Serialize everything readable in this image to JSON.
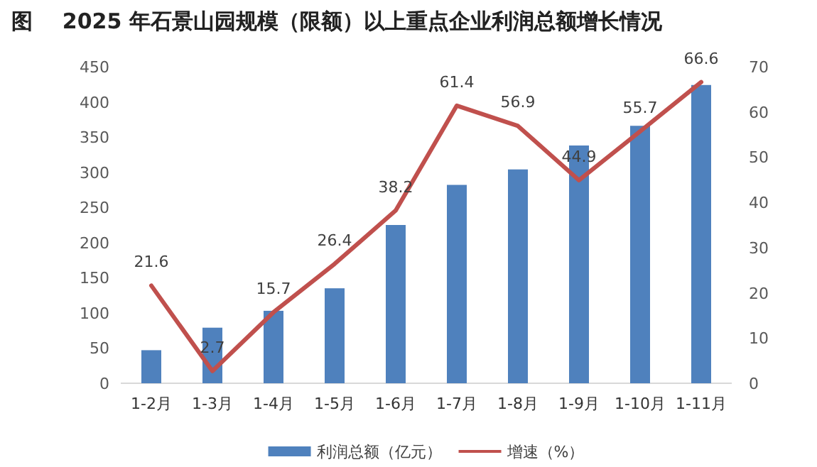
{
  "chart_data": {
    "type": "bar",
    "title": "图    2025 年石景山园规模（限额）以上重点企业利润总额增长情况",
    "categories": [
      "1-2月",
      "1-3月",
      "1-4月",
      "1-5月",
      "1-6月",
      "1-7月",
      "1-8月",
      "1-9月",
      "1-10月",
      "1-11月"
    ],
    "series": [
      {
        "name": "利润总额（亿元）",
        "color": "#4f81bd",
        "values": [
          47,
          79,
          103,
          135,
          225,
          282,
          304,
          338,
          366,
          424
        ]
      },
      {
        "name": "增速（%）",
        "type": "line",
        "axis": "y2",
        "color": "#c0504d",
        "values": [
          21.6,
          2.7,
          15.7,
          26.4,
          38.2,
          61.4,
          56.9,
          44.9,
          55.7,
          66.6
        ],
        "value_labels": [
          "21.6",
          "2.7",
          "15.7",
          "26.4",
          "38.2",
          "61.4",
          "56.9",
          "44.9",
          "55.7",
          "66.6"
        ]
      }
    ],
    "ylim": [
      0,
      450
    ],
    "yticks": [
      0,
      50,
      100,
      150,
      200,
      250,
      300,
      350,
      400,
      450
    ],
    "y2lim": [
      0,
      70
    ],
    "y2ticks": [
      0,
      10,
      20,
      30,
      40,
      50,
      60,
      70
    ],
    "grid": false,
    "legend": "bottom"
  }
}
